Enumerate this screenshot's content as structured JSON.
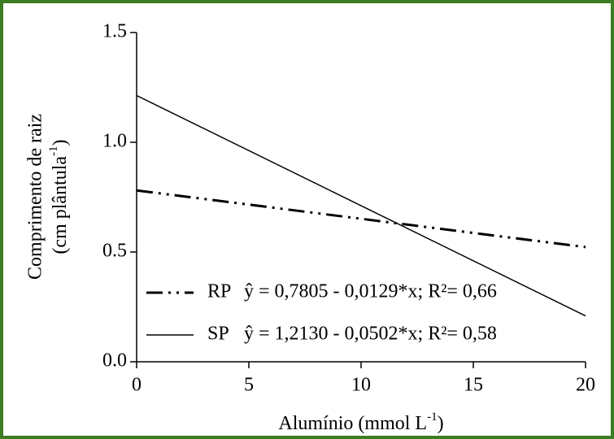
{
  "chart_data": {
    "type": "line",
    "xlabel": {
      "text": "Alumínio (mmol L",
      "sup": "-1",
      "end": ")"
    },
    "ylabel": {
      "line1": "Comprimento de raiz",
      "line2": "(cm plântula",
      "sup": "-1",
      "end": ")"
    },
    "x": [
      0,
      20
    ],
    "series": [
      {
        "name": "RP",
        "equation": "ŷ = 0,7805 - 0,0129*x; R²= 0,66",
        "color": "#000000",
        "style": "dash-dot-dot",
        "values": [
          0.7805,
          0.5225
        ]
      },
      {
        "name": "SP",
        "equation": "ŷ = 1,2130 - 0,0502*x; R²= 0,58",
        "color": "#000000",
        "style": "solid",
        "values": [
          1.213,
          0.209
        ]
      }
    ],
    "xlim": [
      0,
      20
    ],
    "xticks": [
      0,
      5,
      10,
      15,
      20
    ],
    "ylim": [
      0,
      1.5
    ],
    "yticks": [
      {
        "value": 0,
        "label": "0.0"
      },
      0.5,
      {
        "value": 1,
        "label": "1.0"
      },
      1.5
    ],
    "grid": false,
    "border_color": "#3a7d22"
  }
}
